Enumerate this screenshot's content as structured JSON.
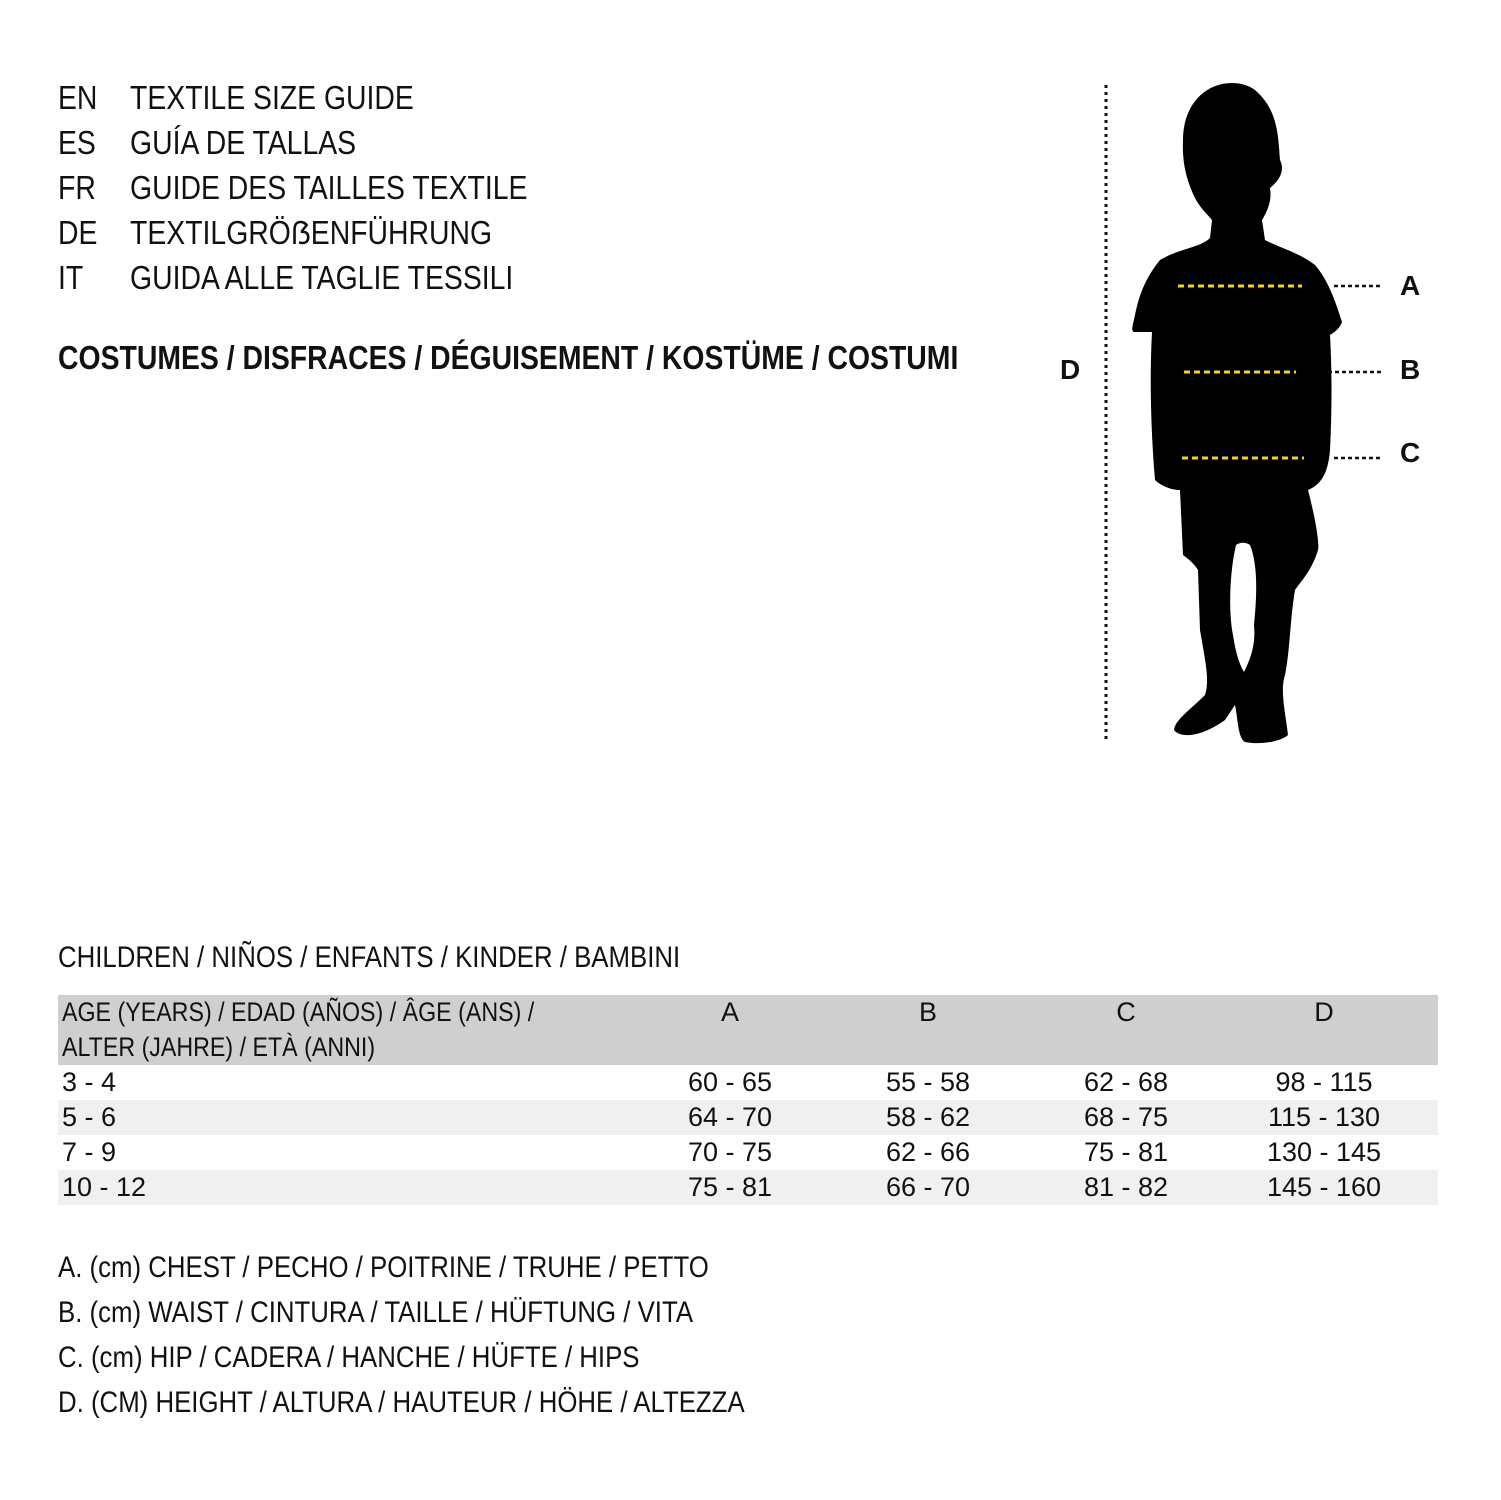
{
  "languages": [
    {
      "code": "EN",
      "title": "TEXTILE SIZE GUIDE"
    },
    {
      "code": "ES",
      "title": "GUÍA DE TALLAS"
    },
    {
      "code": "FR",
      "title": "GUIDE DES TAILLES TEXTILE"
    },
    {
      "code": "DE",
      "title": "TEXTILGRÖẞENFÜHRUNG"
    },
    {
      "code": "IT",
      "title": "GUIDA ALLE TAGLIE TESSILI"
    }
  ],
  "category": "COSTUMES / DISFRACES / DÉGUISEMENT / KOSTÜME / COSTUMI",
  "figure": {
    "labels": {
      "a": "A",
      "b": "B",
      "c": "C",
      "d": "D"
    },
    "measure_line_color": "#f2d21b"
  },
  "table": {
    "title": "CHILDREN / NIÑOS / ENFANTS / KINDER / BAMBINI",
    "headers": {
      "age_line1": "AGE (YEARS) / EDAD (AÑOS) / ÂGE (ANS) /",
      "age_line2": "ALTER (JAHRE) / ETÀ (ANNI)",
      "a": "A",
      "b": "B",
      "c": "C",
      "d": "D"
    },
    "rows": [
      {
        "age": "3 - 4",
        "a": "60 - 65",
        "b": "55 - 58",
        "c": "62 - 68",
        "d": "98 - 115"
      },
      {
        "age": "5 - 6",
        "a": "64 - 70",
        "b": "58 - 62",
        "c": "68 - 75",
        "d": "115 - 130"
      },
      {
        "age": "7 - 9",
        "a": "70 - 75",
        "b": "62 - 66",
        "c": "75 - 81",
        "d": "130 - 145"
      },
      {
        "age": "10 - 12",
        "a": "75 - 81",
        "b": "66 - 70",
        "c": "81 - 82",
        "d": "145 - 160"
      }
    ]
  },
  "legend": [
    "A. (cm) CHEST / PECHO / POITRINE / TRUHE / PETTO",
    "B. (cm) WAIST / CINTURA / TAILLE / HÜFTUNG / VITA",
    "C. (cm) HIP / CADERA / HANCHE / HÜFTE / HIPS",
    "D. (CM) HEIGHT / ALTURA / HAUTEUR / HÖHE / ALTEZZA"
  ]
}
